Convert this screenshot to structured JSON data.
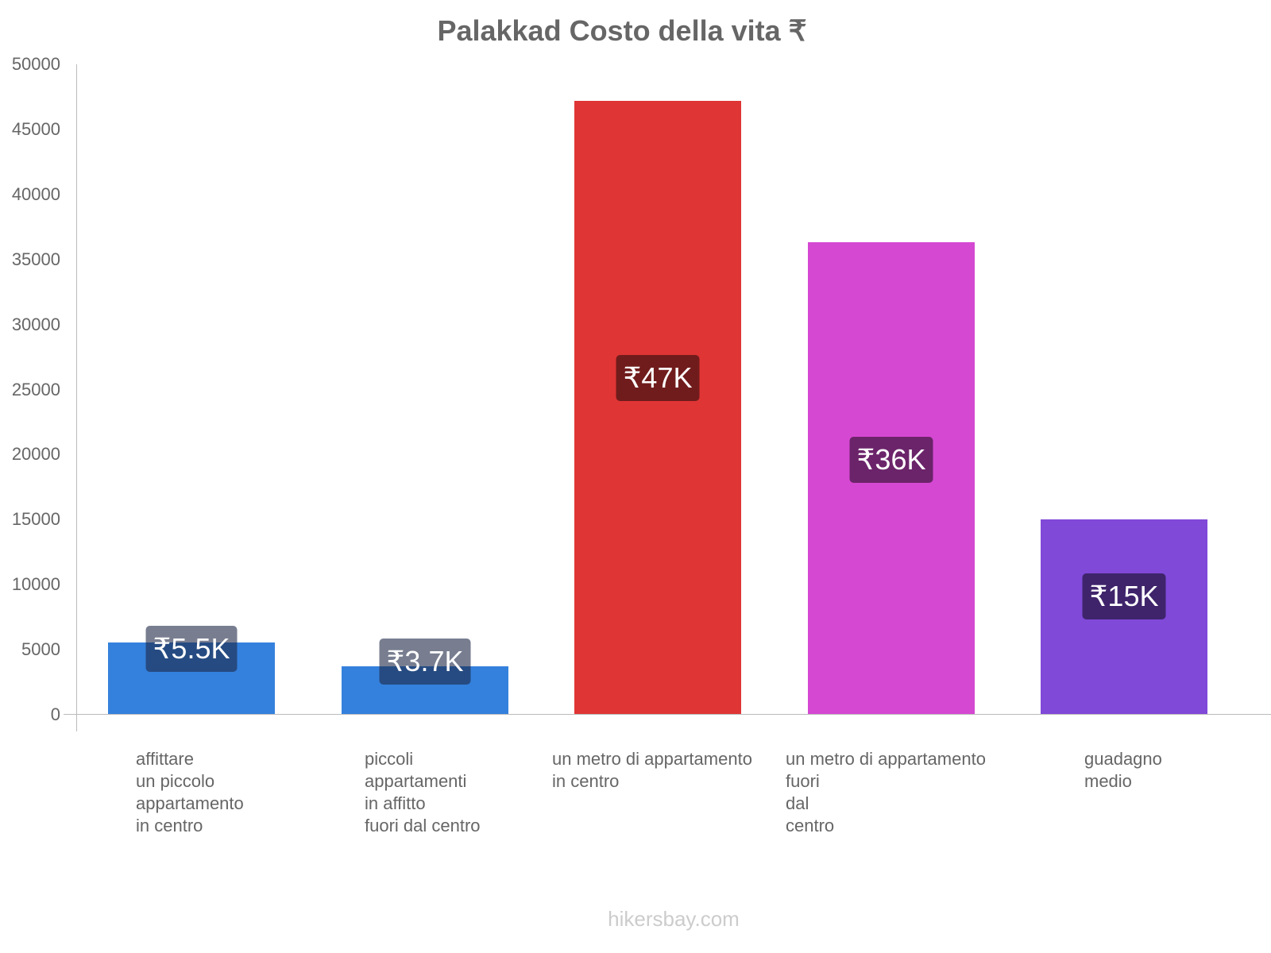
{
  "chart_data": {
    "type": "bar",
    "title": "Palakkad Costo della vita ₹",
    "xlabel": "",
    "ylabel": "",
    "ylim": [
      0,
      50000
    ],
    "yticks": [
      "0",
      "5000",
      "10000",
      "15000",
      "20000",
      "25000",
      "30000",
      "35000",
      "40000",
      "45000",
      "50000"
    ],
    "grid": false,
    "legend": null,
    "categories": [
      "affittare\nun piccolo\nappartamento\nin centro",
      "piccoli\nappartamenti\nin affitto\nfuori dal centro",
      "un metro di appartamento\nin centro",
      "un metro di appartamento\nfuori\ndal\ncentro",
      "guadagno\nmedio"
    ],
    "values": [
      5500,
      3650,
      47200,
      36300,
      15000
    ],
    "data_labels": [
      "₹5.5K",
      "₹3.7K",
      "₹47K",
      "₹36K",
      "₹15K"
    ],
    "colors": [
      "#3481dd",
      "#3481dd",
      "#e03535",
      "#d548d2",
      "#8049d8"
    ],
    "label_bg_colors": [
      "rgba(30,40,70,0.6)",
      "rgba(30,40,70,0.6)",
      "#711c1c",
      "#6b246a",
      "#3f246b"
    ]
  },
  "watermark": "hikersbay.com"
}
